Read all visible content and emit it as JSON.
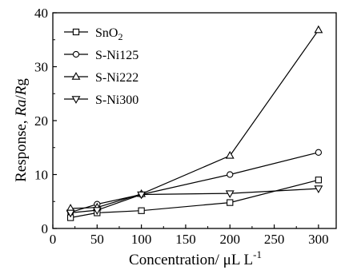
{
  "chart_data": {
    "type": "line",
    "xlabel": "Concentration/ μL L",
    "xlabel_sup": "-1",
    "ylabel_parts": [
      "Response, ",
      "Ra",
      "/",
      "R",
      "g"
    ],
    "xlim": [
      0,
      320
    ],
    "ylim": [
      0,
      40
    ],
    "xticks": [
      0,
      50,
      100,
      150,
      200,
      250,
      300
    ],
    "yticks": [
      0,
      10,
      20,
      30,
      40
    ],
    "grid": false,
    "legend_position": "top-left",
    "x": [
      20,
      50,
      100,
      200,
      300
    ],
    "series": [
      {
        "name": "SnO2",
        "name_main": "SnO",
        "name_sub": "2",
        "marker": "square",
        "values": [
          2.0,
          2.9,
          3.3,
          4.8,
          9.0
        ]
      },
      {
        "name": "S-Ni125",
        "marker": "circle",
        "values": [
          3.0,
          4.5,
          6.3,
          10.0,
          14.1
        ]
      },
      {
        "name": "S-Ni222",
        "marker": "triangle-up",
        "values": [
          3.7,
          3.9,
          6.4,
          13.5,
          36.8
        ]
      },
      {
        "name": "S-Ni300",
        "marker": "triangle-down",
        "values": [
          2.9,
          3.4,
          6.3,
          6.5,
          7.4
        ]
      }
    ]
  }
}
